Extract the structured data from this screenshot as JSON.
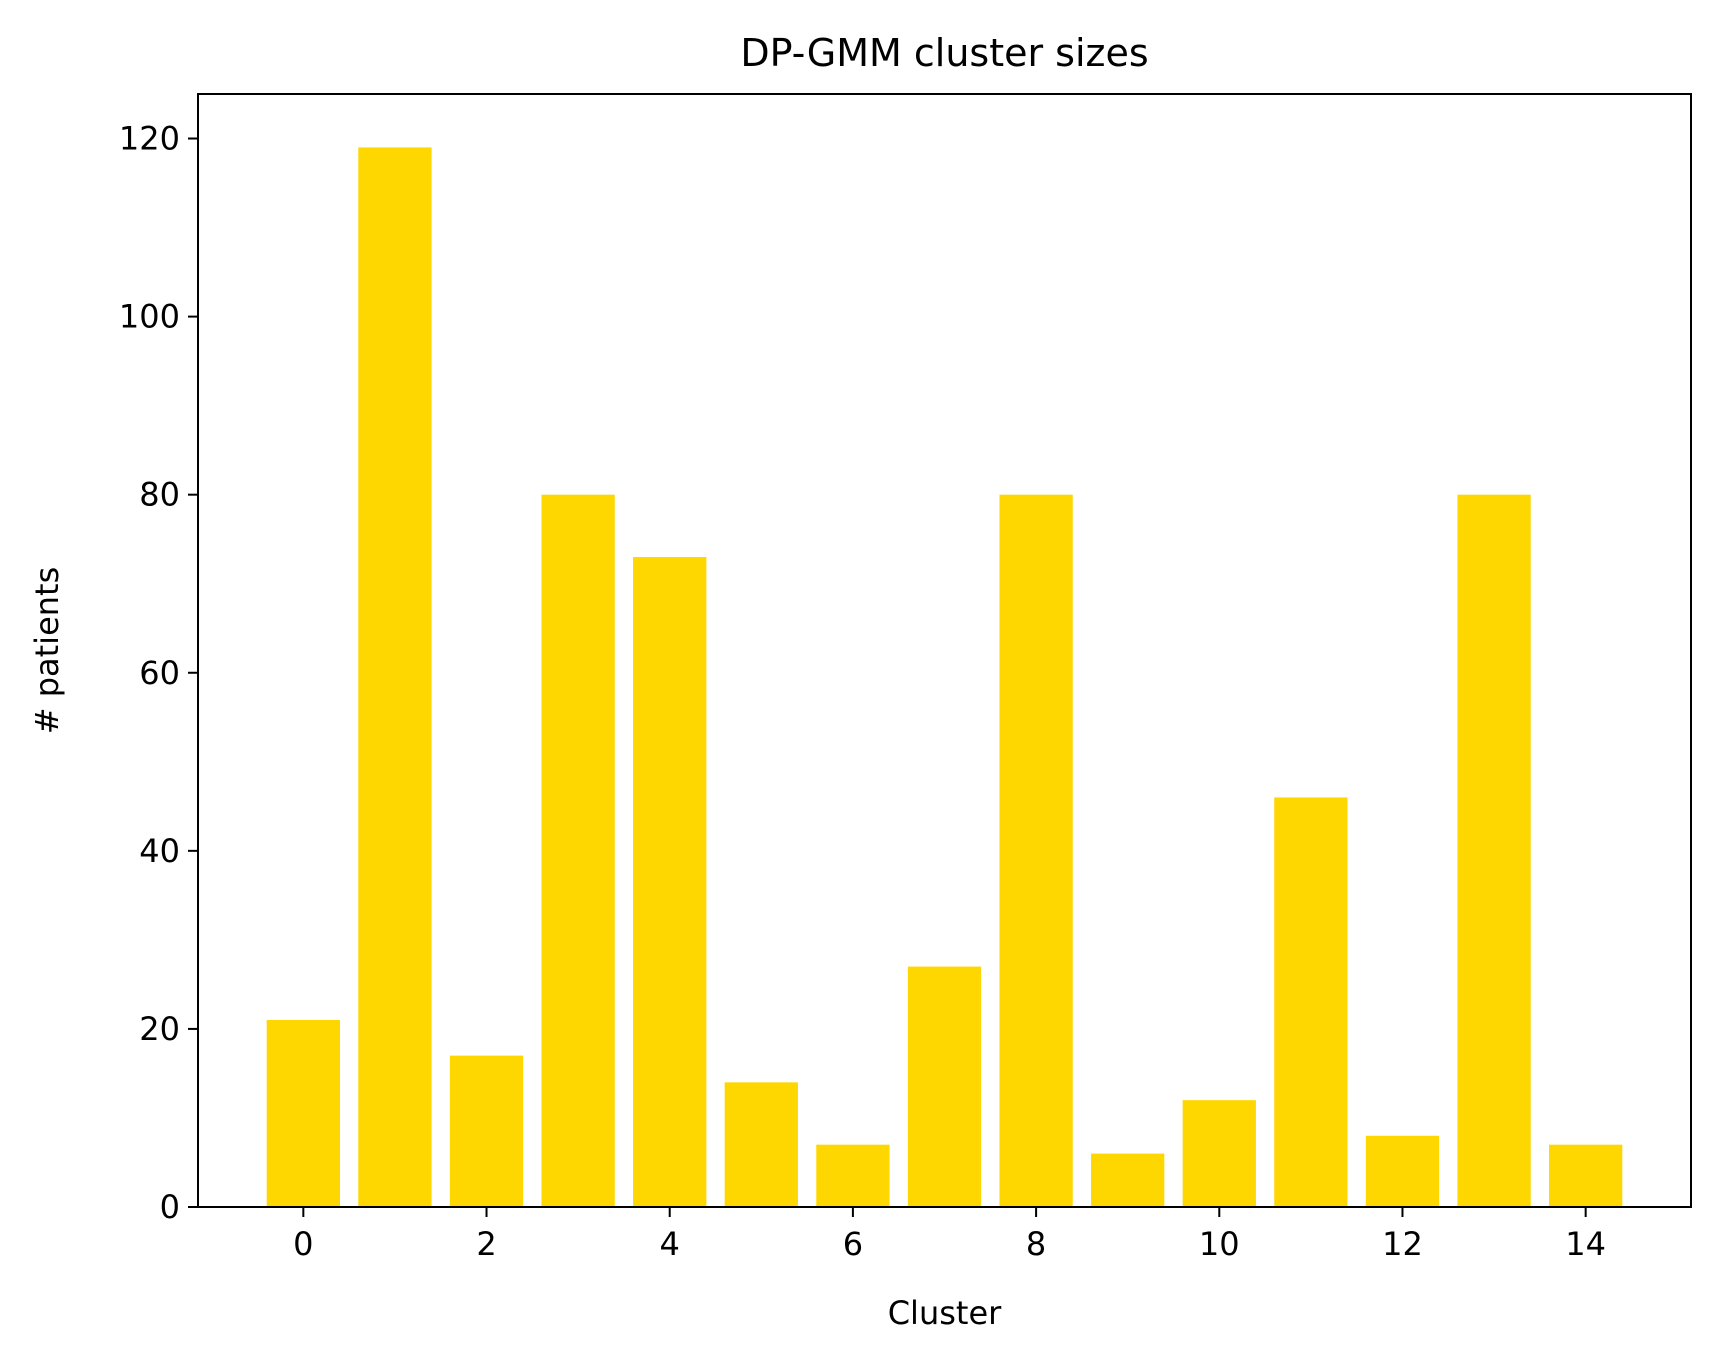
{
  "chart_data": {
    "type": "bar",
    "title": "DP-GMM cluster sizes",
    "xlabel": "Cluster",
    "ylabel": "# patients",
    "x": [
      0,
      1,
      2,
      3,
      4,
      5,
      6,
      7,
      8,
      9,
      10,
      11,
      12,
      13,
      14
    ],
    "values": [
      21,
      119,
      17,
      80,
      73,
      14,
      7,
      27,
      80,
      6,
      12,
      46,
      8,
      80,
      7
    ],
    "xlim": [
      -1.15,
      15.15
    ],
    "ylim": [
      0,
      125
    ],
    "xticks": [
      0,
      2,
      4,
      6,
      8,
      10,
      12,
      14
    ],
    "yticks": [
      0,
      20,
      40,
      60,
      80,
      100,
      120
    ],
    "bar_color": "#FFD700",
    "grid": false,
    "legend": "none"
  }
}
